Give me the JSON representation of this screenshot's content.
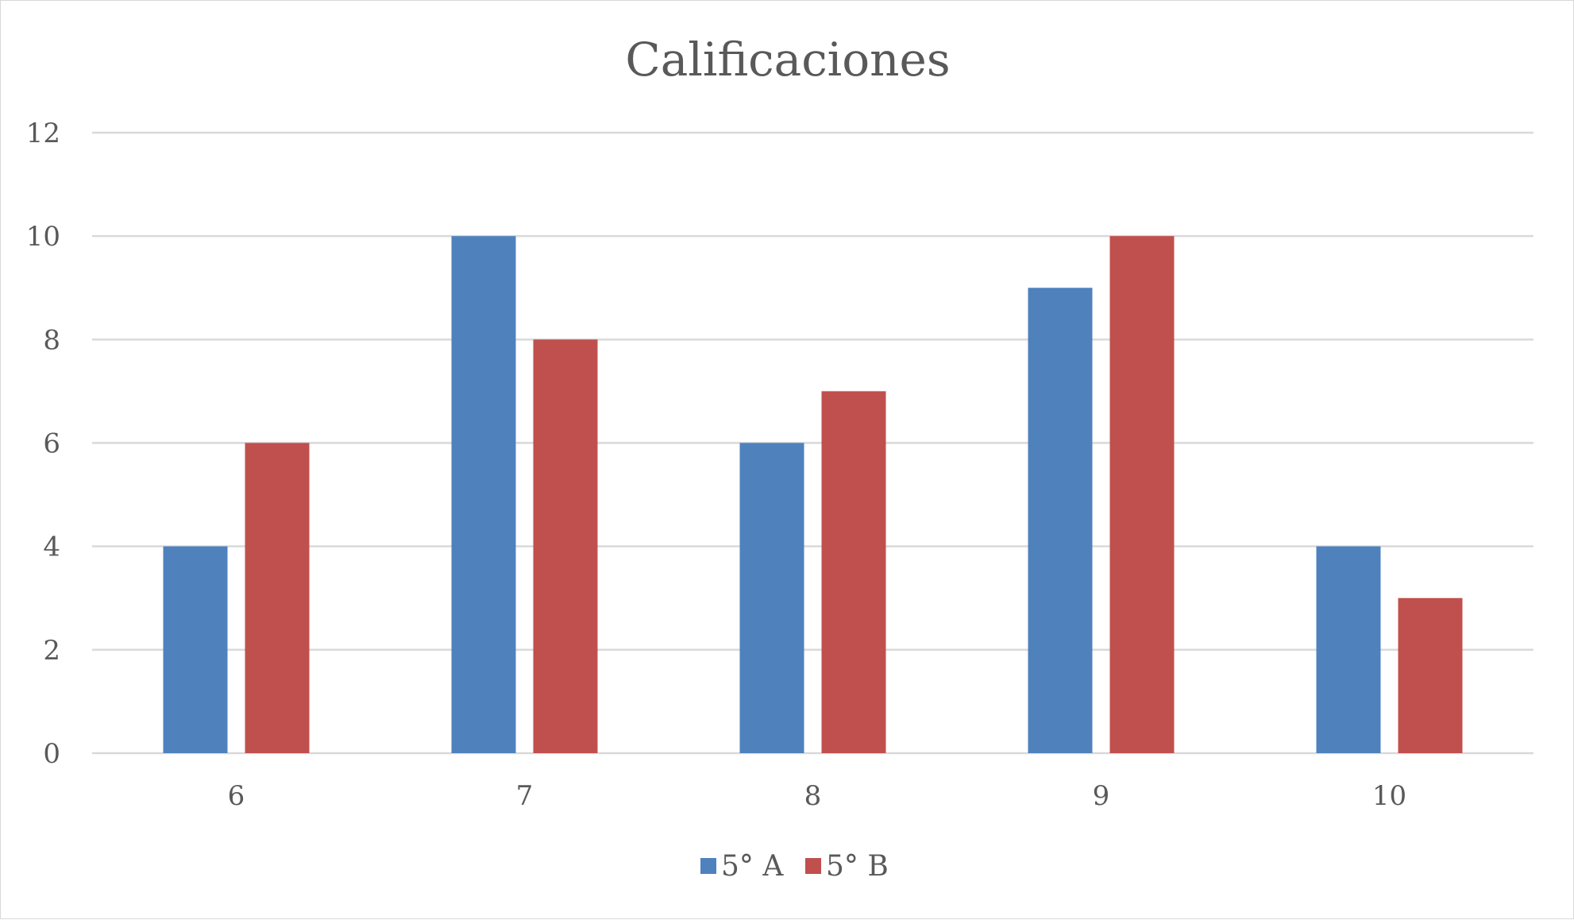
{
  "chart_data": {
    "type": "bar",
    "title": "Calificaciones",
    "xlabel": "",
    "ylabel": "",
    "categories": [
      "6",
      "7",
      "8",
      "9",
      "10"
    ],
    "series": [
      {
        "name": "5° A",
        "color": "#4f81bd",
        "values": [
          4,
          10,
          6,
          9,
          4
        ]
      },
      {
        "name": "5° B",
        "color": "#c0504d",
        "values": [
          6,
          8,
          7,
          10,
          3
        ]
      }
    ],
    "ylim": [
      0,
      12
    ],
    "yticks": [
      "0",
      "2",
      "4",
      "6",
      "8",
      "10",
      "12"
    ],
    "grid": true,
    "legend_position": "bottom"
  }
}
